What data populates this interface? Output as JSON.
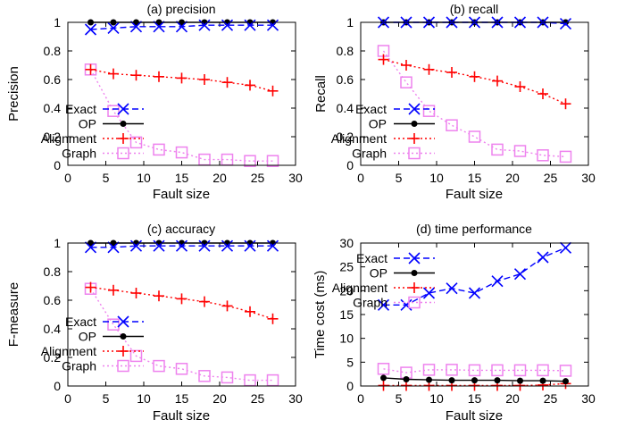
{
  "chart_data": [
    {
      "type": "line",
      "title": "(a) precision",
      "xlabel": "Fault size",
      "ylabel": "Precision",
      "xlim": [
        0,
        30
      ],
      "ylim": [
        0,
        1
      ],
      "xticks": [
        "0",
        "5",
        "10",
        "15",
        "20",
        "25",
        "30"
      ],
      "yticks": [
        "0",
        "0.2",
        "0.4",
        "0.6",
        "0.8",
        "1"
      ],
      "legend_position": "bottom-left",
      "x": [
        3,
        6,
        9,
        12,
        15,
        18,
        21,
        24,
        27
      ],
      "series": [
        {
          "name": "Exact",
          "values": [
            0.95,
            0.96,
            0.97,
            0.97,
            0.97,
            0.98,
            0.98,
            0.98,
            0.98
          ]
        },
        {
          "name": "OP",
          "values": [
            1.0,
            1.0,
            1.0,
            1.0,
            1.0,
            1.0,
            1.0,
            1.0,
            1.0
          ]
        },
        {
          "name": "Alignment",
          "values": [
            0.67,
            0.64,
            0.63,
            0.62,
            0.61,
            0.6,
            0.58,
            0.56,
            0.52
          ]
        },
        {
          "name": "Graph",
          "values": [
            0.67,
            0.38,
            0.16,
            0.11,
            0.09,
            0.04,
            0.04,
            0.03,
            0.03
          ]
        }
      ]
    },
    {
      "type": "line",
      "title": "(b) recall",
      "xlabel": "Fault size",
      "ylabel": "Recall",
      "xlim": [
        0,
        30
      ],
      "ylim": [
        0,
        1
      ],
      "xticks": [
        "0",
        "5",
        "10",
        "15",
        "20",
        "25",
        "30"
      ],
      "yticks": [
        "0",
        "0.2",
        "0.4",
        "0.6",
        "0.8",
        "1"
      ],
      "legend_position": "bottom-left",
      "x": [
        3,
        6,
        9,
        12,
        15,
        18,
        21,
        24,
        27
      ],
      "series": [
        {
          "name": "Exact",
          "values": [
            1.0,
            1.0,
            1.0,
            1.0,
            1.0,
            1.0,
            1.0,
            1.0,
            0.99
          ]
        },
        {
          "name": "OP",
          "values": [
            1.0,
            1.0,
            1.0,
            1.0,
            1.0,
            1.0,
            1.0,
            1.0,
            1.0
          ]
        },
        {
          "name": "Alignment",
          "values": [
            0.74,
            0.7,
            0.67,
            0.65,
            0.62,
            0.59,
            0.55,
            0.5,
            0.43
          ]
        },
        {
          "name": "Graph",
          "values": [
            0.8,
            0.58,
            0.38,
            0.28,
            0.2,
            0.11,
            0.1,
            0.07,
            0.06
          ]
        }
      ]
    },
    {
      "type": "line",
      "title": "(c) accuracy",
      "xlabel": "Fault size",
      "ylabel": "F-measure",
      "xlim": [
        0,
        30
      ],
      "ylim": [
        0,
        1
      ],
      "xticks": [
        "0",
        "5",
        "10",
        "15",
        "20",
        "25",
        "30"
      ],
      "yticks": [
        "0",
        "0.2",
        "0.4",
        "0.6",
        "0.8",
        "1"
      ],
      "legend_position": "bottom-left",
      "x": [
        3,
        6,
        9,
        12,
        15,
        18,
        21,
        24,
        27
      ],
      "series": [
        {
          "name": "Exact",
          "values": [
            0.97,
            0.97,
            0.98,
            0.98,
            0.98,
            0.98,
            0.98,
            0.98,
            0.98
          ]
        },
        {
          "name": "OP",
          "values": [
            1.0,
            1.0,
            1.0,
            1.0,
            1.0,
            1.0,
            1.0,
            1.0,
            1.0
          ]
        },
        {
          "name": "Alignment",
          "values": [
            0.69,
            0.67,
            0.65,
            0.63,
            0.61,
            0.59,
            0.56,
            0.52,
            0.47
          ]
        },
        {
          "name": "Graph",
          "values": [
            0.68,
            0.43,
            0.21,
            0.14,
            0.12,
            0.07,
            0.06,
            0.04,
            0.04
          ]
        }
      ]
    },
    {
      "type": "line",
      "title": "(d) time performance",
      "xlabel": "Fault size",
      "ylabel": "Time cost (ms)",
      "xlim": [
        0,
        30
      ],
      "ylim": [
        0,
        30
      ],
      "xticks": [
        "0",
        "5",
        "10",
        "15",
        "20",
        "25",
        "30"
      ],
      "yticks": [
        "0",
        "5",
        "10",
        "15",
        "20",
        "25",
        "30"
      ],
      "legend_position": "top-left",
      "x": [
        3,
        6,
        9,
        12,
        15,
        18,
        21,
        24,
        27
      ],
      "series": [
        {
          "name": "Exact",
          "values": [
            17,
            17,
            19.5,
            20.5,
            19.5,
            22,
            23.5,
            27,
            29
          ]
        },
        {
          "name": "OP",
          "values": [
            1.7,
            1.4,
            1.3,
            1.2,
            1.2,
            1.2,
            1.1,
            1.1,
            1.0
          ]
        },
        {
          "name": "Alignment",
          "values": [
            0.1,
            0.1,
            0.1,
            0.1,
            0.1,
            0.1,
            0.1,
            0.2,
            0.5
          ]
        },
        {
          "name": "Graph",
          "values": [
            3.6,
            2.8,
            3.4,
            3.4,
            3.3,
            3.3,
            3.3,
            3.3,
            3.2
          ]
        }
      ]
    }
  ],
  "styles": {
    "Exact": {
      "color": "#0000ff",
      "marker": "x-icon",
      "dash": "dashed"
    },
    "OP": {
      "color": "#000000",
      "marker": "filled-circle-icon",
      "dash": "solid"
    },
    "Alignment": {
      "color": "#ff0000",
      "marker": "plus-icon",
      "dash": "dotted"
    },
    "Graph": {
      "color": "#ee82ee",
      "marker": "open-square-icon",
      "dash": "dotted"
    }
  }
}
